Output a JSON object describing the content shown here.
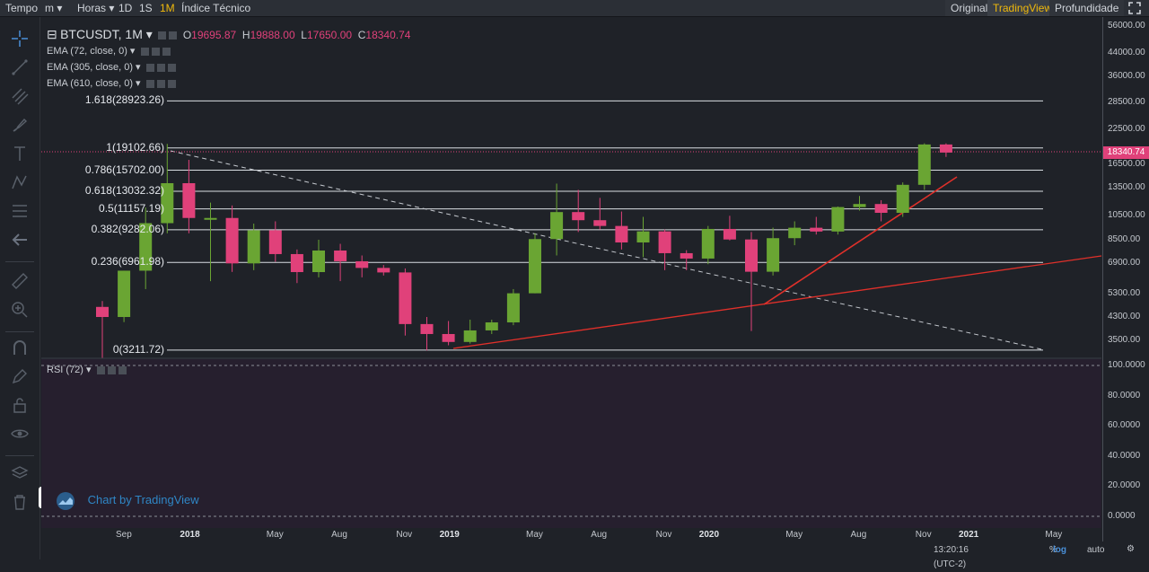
{
  "topbar": {
    "left": [
      {
        "label": "Tempo",
        "active": false
      },
      {
        "label": "m ▾",
        "active": false
      },
      {
        "label": "Horas ▾",
        "active": false
      },
      {
        "label": "1D",
        "active": false
      },
      {
        "label": "1S",
        "active": false
      },
      {
        "label": "1M",
        "active": true
      },
      {
        "label": "Índice Técnico",
        "active": false
      }
    ],
    "right": [
      {
        "label": "Original",
        "active": false
      },
      {
        "label": "TradingView",
        "active": true
      },
      {
        "label": "Profundidade",
        "active": false
      }
    ]
  },
  "legend": {
    "symbol": "BTCUSDT, 1M",
    "o_label": "O",
    "o": "19695.87",
    "h_label": "H",
    "h": "19888.00",
    "l_label": "L",
    "l": "17650.00",
    "c_label": "C",
    "c": "18340.74",
    "ema1": "EMA (72, close, 0)",
    "ema2": "EMA (305, close, 0)",
    "ema3": "EMA (610, close, 0)",
    "rsi": "RSI (72)"
  },
  "fib": [
    {
      "label": "1.618(28923.26)",
      "price": 28923.26
    },
    {
      "label": "1(19102.66)",
      "price": 19102.66
    },
    {
      "label": "0.786(15702.00)",
      "price": 15702.0
    },
    {
      "label": "0.618(13032.32)",
      "price": 13032.32
    },
    {
      "label": "0.5(11157.19)",
      "price": 11157.19
    },
    {
      "label": "0.382(9282.06)",
      "price": 9282.06
    },
    {
      "label": "0.236(6961.98)",
      "price": 6961.98
    },
    {
      "label": "0(3211.72)",
      "price": 3211.72
    }
  ],
  "price_axis": [
    "56000.00",
    "44000.00",
    "36000.00",
    "28500.00",
    "22500.00",
    "16500.00",
    "13500.00",
    "10500.00",
    "8500.00",
    "6900.00",
    "5300.00",
    "4300.00",
    "3500.00"
  ],
  "price_axis_values": [
    56000,
    44000,
    36000,
    28500,
    22500,
    16500,
    13500,
    10500,
    8500,
    6900,
    5300,
    4300,
    3500
  ],
  "current_price": "18340.74",
  "rsi_axis": [
    "100.0000",
    "80.0000",
    "60.0000",
    "40.0000",
    "20.0000",
    "0.0000"
  ],
  "rsi_axis_values": [
    100,
    80,
    60,
    40,
    20,
    0
  ],
  "time_axis": [
    {
      "label": "Sep",
      "bold": false,
      "index": 0
    },
    {
      "label": "2018",
      "bold": true,
      "index": 4
    },
    {
      "label": "May",
      "bold": false,
      "index": 8
    },
    {
      "label": "Aug",
      "bold": false,
      "index": 11
    },
    {
      "label": "Nov",
      "bold": false,
      "index": 14
    },
    {
      "label": "2019",
      "bold": true,
      "index": 16
    },
    {
      "label": "May",
      "bold": false,
      "index": 20
    },
    {
      "label": "Aug",
      "bold": false,
      "index": 23
    },
    {
      "label": "Nov",
      "bold": false,
      "index": 26
    },
    {
      "label": "2020",
      "bold": true,
      "index": 28
    },
    {
      "label": "May",
      "bold": false,
      "index": 32
    },
    {
      "label": "Aug",
      "bold": false,
      "index": 35
    },
    {
      "label": "Nov",
      "bold": false,
      "index": 38
    },
    {
      "label": "2021",
      "bold": true,
      "index": 40
    },
    {
      "label": "May",
      "bold": false,
      "index": 44
    }
  ],
  "bottom": {
    "time": "13:20:16 (UTC-2)",
    "pct": "%",
    "log": "log",
    "auto": "auto"
  },
  "watermark": "Chart by TradingView",
  "colors": {
    "up": "#6aa533",
    "down": "#e0417a",
    "fib": "#d9dde2",
    "trend": "#e0302a",
    "bg": "#1f2228",
    "rsi_bg": "#261f2e"
  },
  "chart_data": {
    "type": "candlestick",
    "title": "BTCUSDT, 1M",
    "y_scale": "log",
    "candles": [
      {
        "o": 4700,
        "h": 4950,
        "l": 3000,
        "c": 4300,
        "x": 0
      },
      {
        "o": 4300,
        "h": 6470,
        "l": 4110,
        "c": 6470,
        "x": 1
      },
      {
        "o": 6470,
        "h": 11300,
        "l": 5500,
        "c": 9840,
        "x": 2
      },
      {
        "o": 9840,
        "h": 19800,
        "l": 9000,
        "c": 14000,
        "x": 3
      },
      {
        "o": 14000,
        "h": 17200,
        "l": 9000,
        "c": 10300,
        "x": 4
      },
      {
        "o": 10300,
        "h": 11800,
        "l": 5900,
        "c": 10300,
        "x": 5
      },
      {
        "o": 10300,
        "h": 11500,
        "l": 6400,
        "c": 6900,
        "x": 6
      },
      {
        "o": 6900,
        "h": 9800,
        "l": 6500,
        "c": 9240,
        "x": 7
      },
      {
        "o": 9240,
        "h": 10000,
        "l": 7000,
        "c": 7490,
        "x": 8
      },
      {
        "o": 7490,
        "h": 7800,
        "l": 5800,
        "c": 6390,
        "x": 9
      },
      {
        "o": 6390,
        "h": 8500,
        "l": 6100,
        "c": 7730,
        "x": 10
      },
      {
        "o": 7730,
        "h": 8200,
        "l": 5900,
        "c": 7030,
        "x": 11
      },
      {
        "o": 7030,
        "h": 7400,
        "l": 6100,
        "c": 6630,
        "x": 12
      },
      {
        "o": 6630,
        "h": 6800,
        "l": 6200,
        "c": 6370,
        "x": 13
      },
      {
        "o": 6370,
        "h": 6600,
        "l": 3650,
        "c": 4040,
        "x": 14
      },
      {
        "o": 4040,
        "h": 4300,
        "l": 3200,
        "c": 3700,
        "x": 15
      },
      {
        "o": 3700,
        "h": 4150,
        "l": 3350,
        "c": 3450,
        "x": 16
      },
      {
        "o": 3450,
        "h": 4200,
        "l": 3400,
        "c": 3820,
        "x": 17
      },
      {
        "o": 3820,
        "h": 4200,
        "l": 3700,
        "c": 4100,
        "x": 18
      },
      {
        "o": 4100,
        "h": 5500,
        "l": 4000,
        "c": 5300,
        "x": 19
      },
      {
        "o": 5300,
        "h": 9000,
        "l": 5300,
        "c": 8550,
        "x": 20
      },
      {
        "o": 8550,
        "h": 13950,
        "l": 7400,
        "c": 10850,
        "x": 21
      },
      {
        "o": 10850,
        "h": 13200,
        "l": 9100,
        "c": 10100,
        "x": 22
      },
      {
        "o": 10100,
        "h": 12300,
        "l": 9300,
        "c": 9600,
        "x": 23
      },
      {
        "o": 9600,
        "h": 10900,
        "l": 7800,
        "c": 8300,
        "x": 24
      },
      {
        "o": 8300,
        "h": 10400,
        "l": 7300,
        "c": 9150,
        "x": 25
      },
      {
        "o": 9150,
        "h": 9300,
        "l": 6500,
        "c": 7550,
        "x": 26
      },
      {
        "o": 7550,
        "h": 7750,
        "l": 6500,
        "c": 7200,
        "x": 27
      },
      {
        "o": 7200,
        "h": 9600,
        "l": 6850,
        "c": 9350,
        "x": 28
      },
      {
        "o": 9350,
        "h": 10500,
        "l": 8450,
        "c": 8520,
        "x": 29
      },
      {
        "o": 8520,
        "h": 9100,
        "l": 3800,
        "c": 6410,
        "x": 30
      },
      {
        "o": 6410,
        "h": 9460,
        "l": 6200,
        "c": 8620,
        "x": 31
      },
      {
        "o": 8620,
        "h": 10000,
        "l": 8100,
        "c": 9450,
        "x": 32
      },
      {
        "o": 9450,
        "h": 10400,
        "l": 8900,
        "c": 9140,
        "x": 33
      },
      {
        "o": 9140,
        "h": 11400,
        "l": 8900,
        "c": 11340,
        "x": 34
      },
      {
        "o": 11340,
        "h": 12500,
        "l": 11000,
        "c": 11650,
        "x": 35
      },
      {
        "o": 11650,
        "h": 12050,
        "l": 10000,
        "c": 10780,
        "x": 36
      },
      {
        "o": 10780,
        "h": 14100,
        "l": 10400,
        "c": 13800,
        "x": 37
      },
      {
        "o": 13800,
        "h": 19900,
        "l": 13200,
        "c": 19700,
        "x": 38
      },
      {
        "o": 19700,
        "h": 19890,
        "l": 17650,
        "c": 18340,
        "x": 39
      }
    ]
  }
}
